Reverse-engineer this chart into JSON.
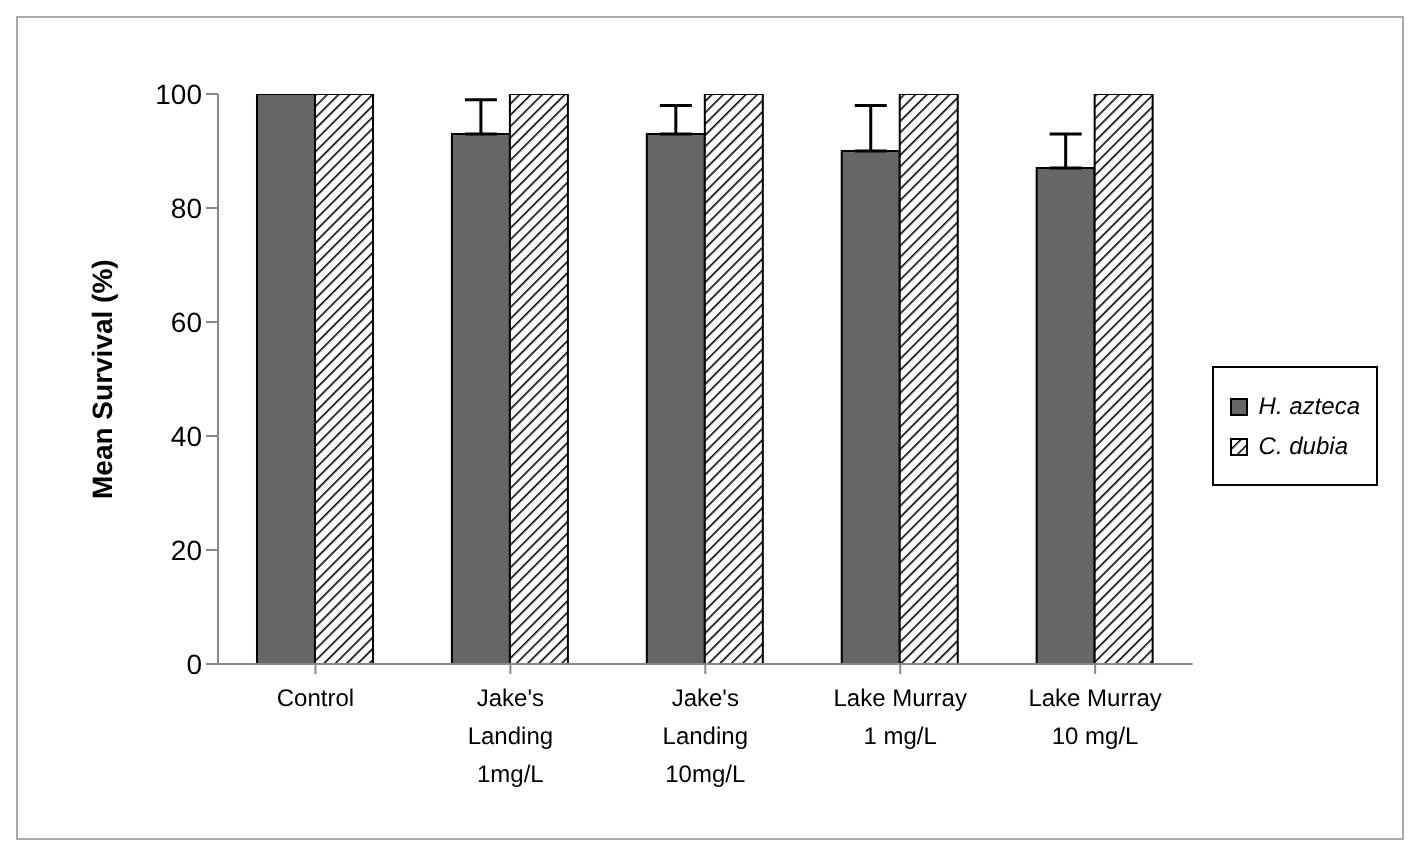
{
  "chart_data": {
    "type": "bar",
    "ylabel": "Mean Survival (%)",
    "categories": [
      "Control",
      "Jake's Landing 1mg/L",
      "Jake's Landing 10mg/L",
      "Lake Murray 1 mg/L",
      "Lake Murray 10 mg/L"
    ],
    "series": [
      {
        "name": "H. azteca",
        "color": "#666666",
        "values": [
          100,
          93,
          93,
          90,
          87
        ],
        "errors": [
          null,
          [
            93,
            99
          ],
          [
            93,
            98
          ],
          [
            90,
            98
          ],
          [
            87,
            93
          ]
        ]
      },
      {
        "name": "C. dubia",
        "color": "#000000",
        "values": [
          100,
          100,
          100,
          100,
          100
        ]
      }
    ],
    "ylim": [
      0,
      100
    ],
    "yticks": [
      0,
      20,
      40,
      60,
      80,
      100
    ],
    "legend": "right"
  }
}
